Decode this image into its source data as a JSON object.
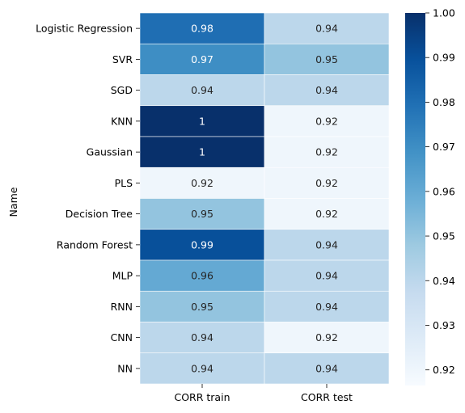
{
  "chart_data": {
    "type": "heatmap",
    "title": "",
    "xlabel": "",
    "ylabel": "Name",
    "columns": [
      "CORR train",
      "CORR test"
    ],
    "rows": [
      "Logistic Regression",
      "SVR",
      "SGD",
      "KNN",
      "Gaussian",
      "PLS",
      "Decision Tree",
      "Random Forest",
      "MLP",
      "RNN",
      "CNN",
      "NN"
    ],
    "values": [
      [
        0.98,
        0.94
      ],
      [
        0.97,
        0.95
      ],
      [
        0.94,
        0.94
      ],
      [
        1.0,
        0.92
      ],
      [
        1.0,
        0.92
      ],
      [
        0.92,
        0.92
      ],
      [
        0.95,
        0.92
      ],
      [
        0.99,
        0.94
      ],
      [
        0.96,
        0.94
      ],
      [
        0.95,
        0.94
      ],
      [
        0.94,
        0.92
      ],
      [
        0.94,
        0.94
      ]
    ],
    "cell_labels": [
      [
        "0.98",
        "0.94"
      ],
      [
        "0.97",
        "0.95"
      ],
      [
        "0.94",
        "0.94"
      ],
      [
        "1",
        "0.92"
      ],
      [
        "1",
        "0.92"
      ],
      [
        "0.92",
        "0.92"
      ],
      [
        "0.95",
        "0.92"
      ],
      [
        "0.99",
        "0.94"
      ],
      [
        "0.96",
        "0.94"
      ],
      [
        "0.95",
        "0.94"
      ],
      [
        "0.94",
        "0.92"
      ],
      [
        "0.94",
        "0.94"
      ]
    ],
    "colorbar": {
      "colormap": "Blues",
      "range": [
        0.9165,
        1.0
      ],
      "ticks": [
        0.92,
        0.93,
        0.94,
        0.95,
        0.96,
        0.97,
        0.98,
        0.99,
        1.0
      ],
      "tick_labels": [
        "0.92",
        "0.93",
        "0.94",
        "0.95",
        "0.96",
        "0.97",
        "0.98",
        "0.99",
        "1.00"
      ]
    },
    "grid": false
  }
}
